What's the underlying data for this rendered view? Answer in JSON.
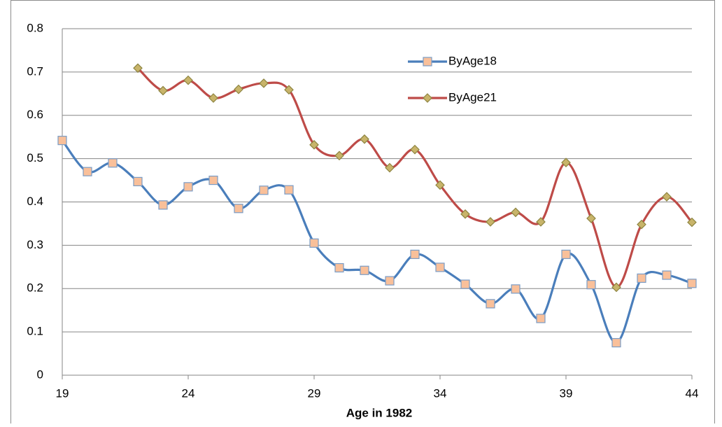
{
  "chart_data": {
    "type": "line",
    "smooth": true,
    "x_label": "Age in 1982",
    "x": [
      19,
      20,
      21,
      22,
      23,
      24,
      25,
      26,
      27,
      28,
      29,
      30,
      31,
      32,
      33,
      34,
      35,
      36,
      37,
      38,
      39,
      40,
      41,
      42,
      43,
      44
    ],
    "series": [
      {
        "name": "ByAge18",
        "color": "#4a7ebb",
        "marker": "square",
        "marker_fill": "#f9c09a",
        "marker_stroke": "#7a9cc6",
        "values": [
          0.542,
          0.47,
          0.49,
          0.447,
          0.393,
          0.435,
          0.45,
          0.385,
          0.427,
          0.428,
          0.305,
          0.248,
          0.242,
          0.218,
          0.279,
          0.249,
          0.21,
          0.165,
          0.199,
          0.131,
          0.279,
          0.209,
          0.075,
          0.224,
          0.231,
          0.212
        ]
      },
      {
        "name": "ByAge21",
        "color": "#be4b48",
        "marker": "diamond",
        "marker_fill": "#c8b46a",
        "marker_stroke": "#8d8440",
        "values": [
          null,
          null,
          null,
          0.709,
          0.657,
          0.681,
          0.64,
          0.66,
          0.674,
          0.659,
          0.532,
          0.507,
          0.545,
          0.479,
          0.521,
          0.439,
          0.372,
          0.354,
          0.376,
          0.354,
          0.491,
          0.362,
          0.203,
          0.348,
          0.412,
          0.353
        ]
      }
    ],
    "xlim": [
      19,
      44
    ],
    "xticks": [
      19,
      24,
      29,
      34,
      39,
      44
    ],
    "ylim": [
      0,
      0.8
    ],
    "yticks": [
      0,
      0.1,
      0.2,
      0.3,
      0.4,
      0.5,
      0.6,
      0.7,
      0.8
    ],
    "grid": true,
    "legend": "upper right"
  }
}
